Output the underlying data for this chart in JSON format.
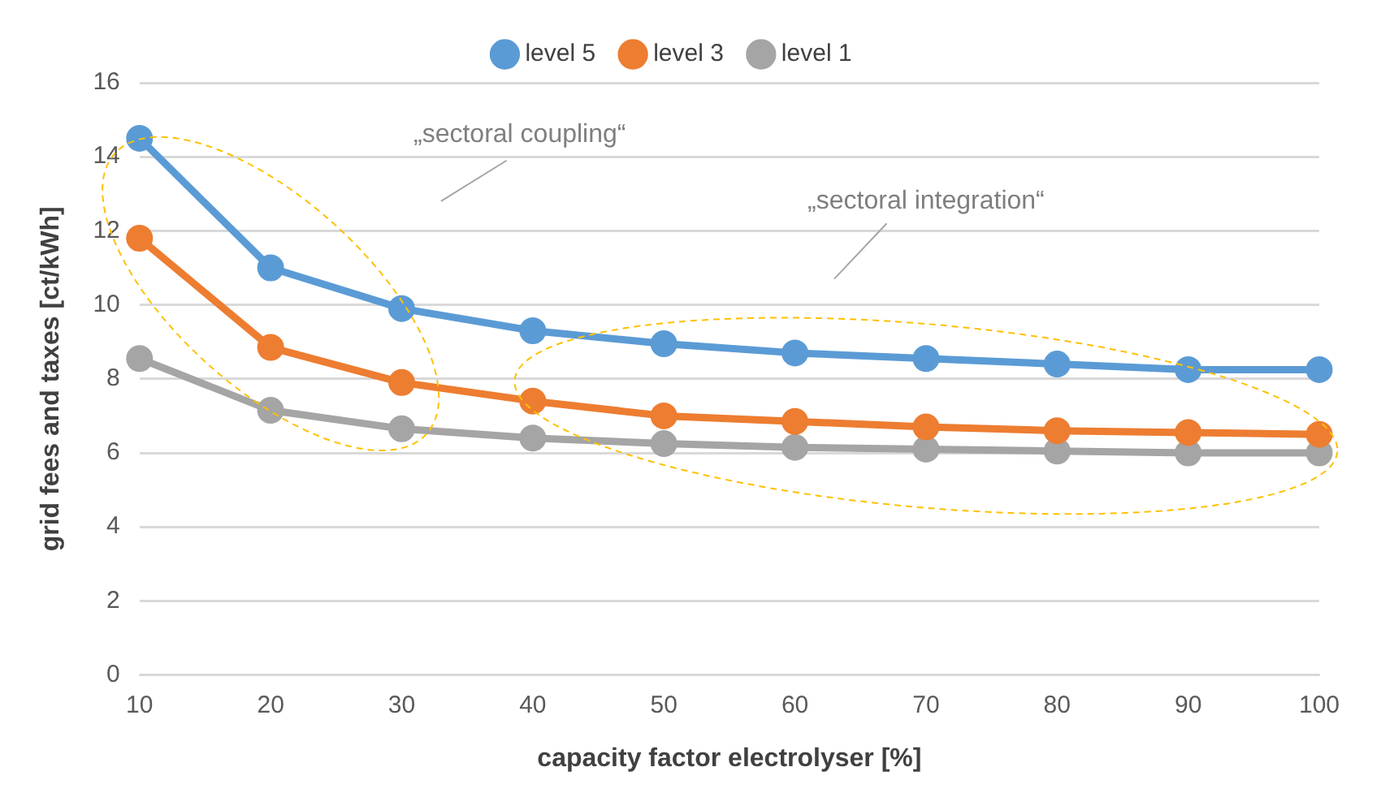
{
  "chart_data": {
    "type": "line",
    "xlabel": "capacity factor electrolyser [%]",
    "ylabel": "grid fees and taxes [ct/kWh]",
    "categories": [
      "10",
      "20",
      "30",
      "40",
      "50",
      "60",
      "70",
      "80",
      "90",
      "100"
    ],
    "series": [
      {
        "name": "level 5",
        "color": "#5b9bd5",
        "values": [
          14.5,
          11.0,
          9.9,
          9.3,
          8.95,
          8.7,
          8.55,
          8.4,
          8.25,
          8.25
        ]
      },
      {
        "name": "level 3",
        "color": "#ed7d31",
        "values": [
          11.8,
          8.85,
          7.9,
          7.4,
          7.0,
          6.85,
          6.7,
          6.6,
          6.55,
          6.5
        ]
      },
      {
        "name": "level 1",
        "color": "#a5a5a5",
        "values": [
          8.55,
          7.15,
          6.65,
          6.4,
          6.25,
          6.15,
          6.1,
          6.05,
          6.0,
          6.0
        ]
      }
    ],
    "ylim": [
      0,
      16
    ],
    "yticks": [
      0,
      2,
      4,
      6,
      8,
      10,
      12,
      14,
      16
    ],
    "grid": "y",
    "legend": "top",
    "marker": "circle",
    "line_style": "solid",
    "annotations": [
      "„sectoral coupling“",
      "„sectoral integration“"
    ]
  }
}
